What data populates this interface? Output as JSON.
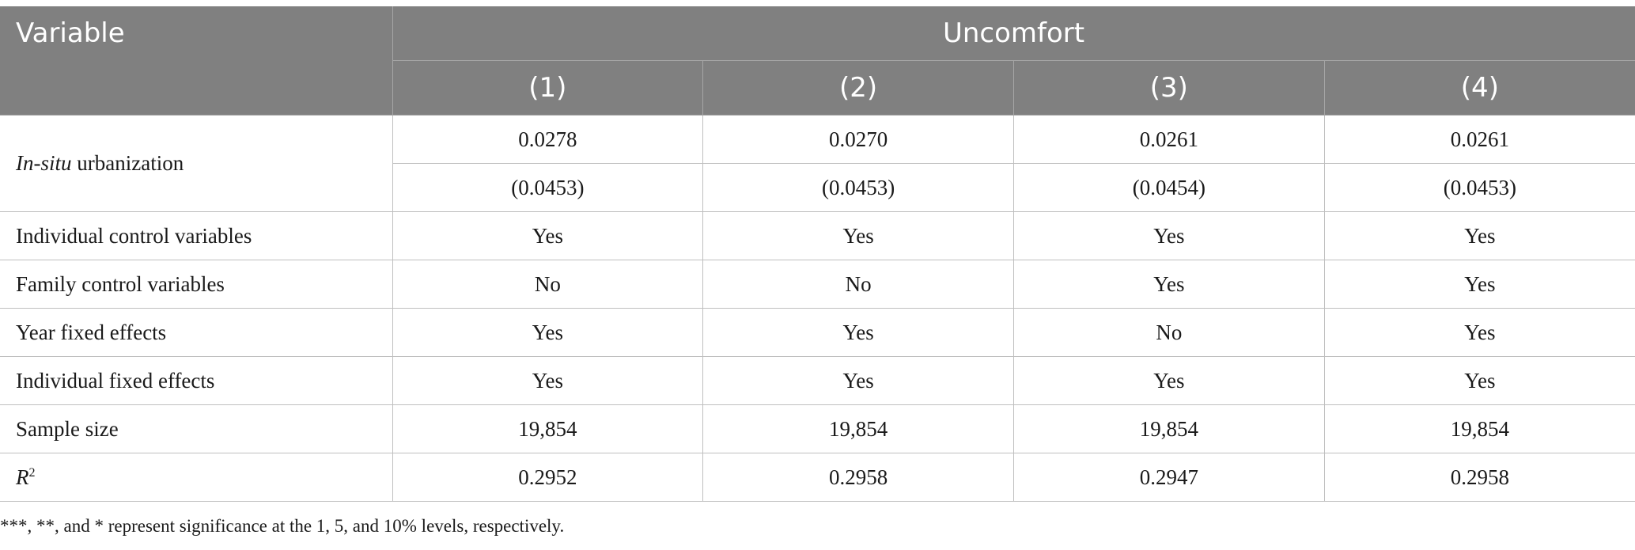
{
  "table": {
    "header": {
      "variable_label": "Variable",
      "group_label": "Uncomfort",
      "columns": [
        "(1)",
        "(2)",
        "(3)",
        "(4)"
      ]
    },
    "urbanization": {
      "label_italic": "In-situ",
      "label_rest": " urbanization",
      "coefficients": [
        "0.0278",
        "0.0270",
        "0.0261",
        "0.0261"
      ],
      "std_errors": [
        "(0.0453)",
        "(0.0453)",
        "(0.0454)",
        "(0.0453)"
      ]
    },
    "rows": [
      {
        "label": "Individual control variables",
        "values": [
          "Yes",
          "Yes",
          "Yes",
          "Yes"
        ]
      },
      {
        "label": "Family control variables",
        "values": [
          "No",
          "No",
          "Yes",
          "Yes"
        ]
      },
      {
        "label": "Year fixed effects",
        "values": [
          "Yes",
          "Yes",
          "No",
          "Yes"
        ]
      },
      {
        "label": "Individual fixed effects",
        "values": [
          "Yes",
          "Yes",
          "Yes",
          "Yes"
        ]
      },
      {
        "label": "Sample size",
        "values": [
          "19,854",
          "19,854",
          "19,854",
          "19,854"
        ]
      }
    ],
    "r2": {
      "label_base": "R",
      "label_sup": "2",
      "values": [
        "0.2952",
        "0.2958",
        "0.2947",
        "0.2958"
      ]
    }
  },
  "footnote": "***, **, and * represent significance at the 1, 5, and 10% levels, respectively."
}
